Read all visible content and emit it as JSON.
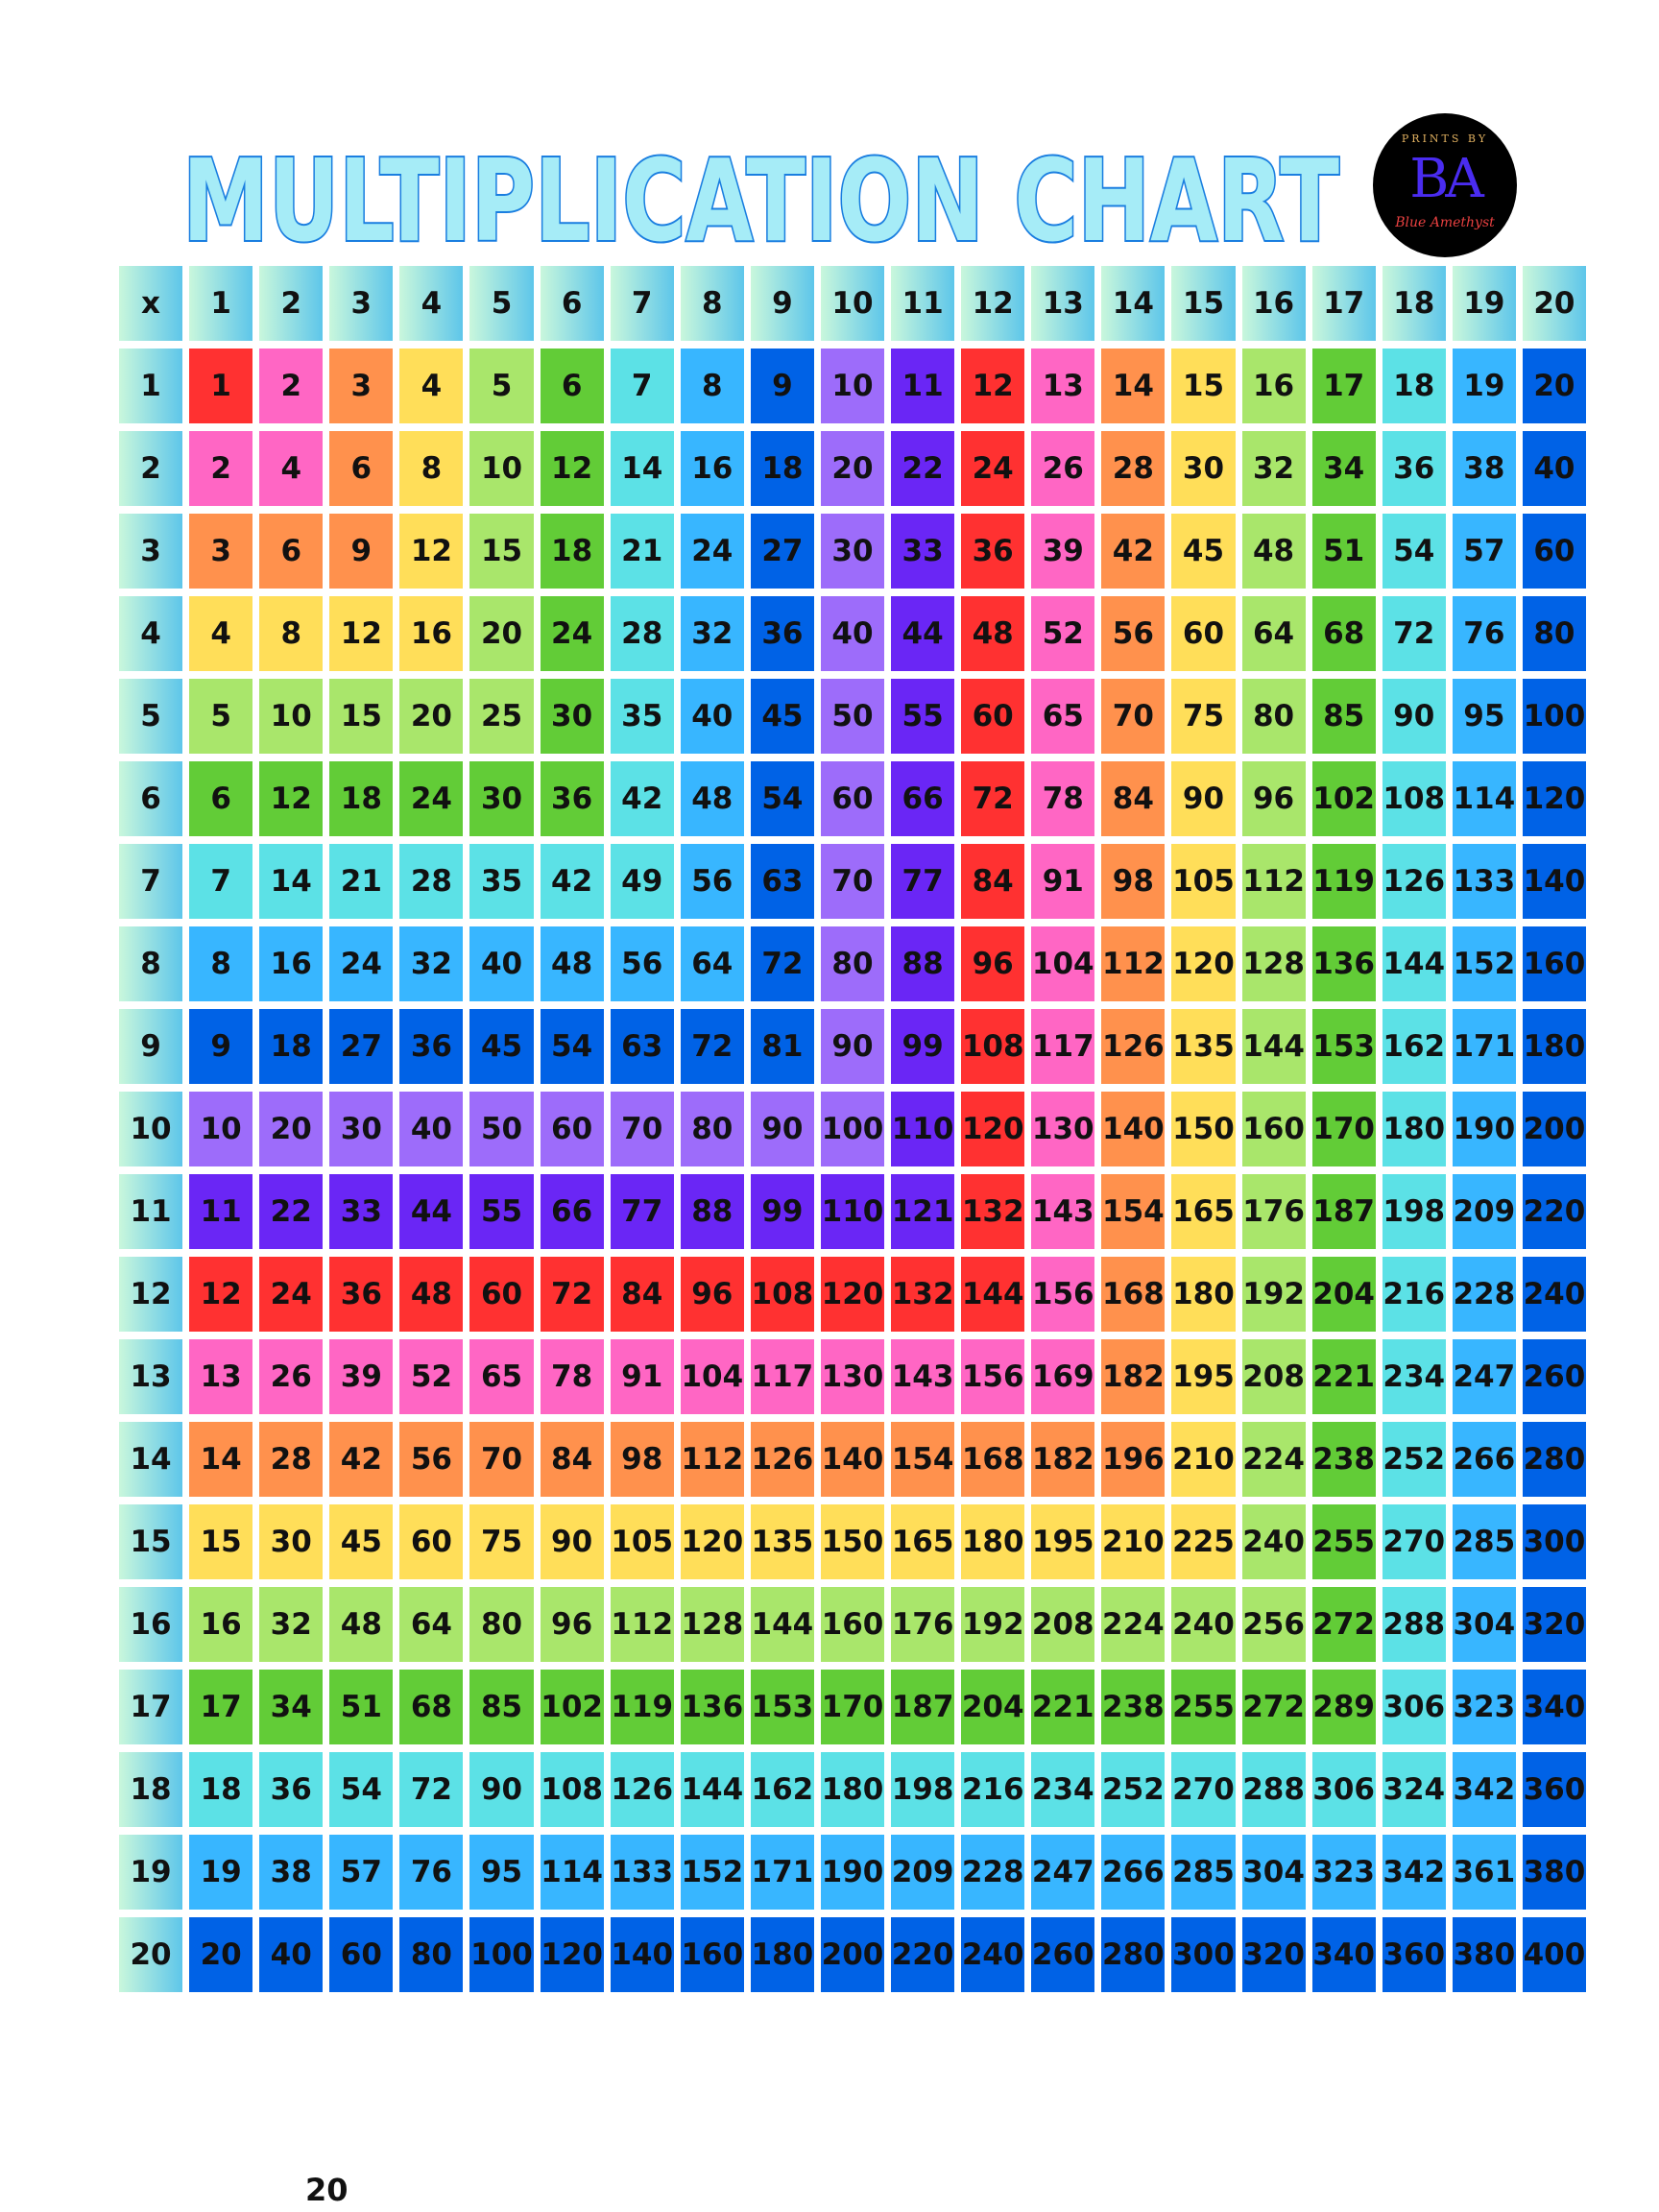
{
  "title": "MULTIPLICATION CHART",
  "logo": {
    "top_text": "PRINTS BY",
    "monogram": "BA",
    "script_text": "Blue Amethyst"
  },
  "table": {
    "corner": "x",
    "column_headers": [
      1,
      2,
      3,
      4,
      5,
      6,
      7,
      8,
      9,
      10,
      11,
      12,
      13,
      14,
      15,
      16,
      17,
      18,
      19,
      20
    ],
    "row_headers": [
      1,
      2,
      3,
      4,
      5,
      6,
      7,
      8,
      9,
      10,
      11,
      12,
      13,
      14,
      15,
      16,
      17,
      18,
      19,
      20
    ],
    "rows": [
      [
        1,
        2,
        3,
        4,
        5,
        6,
        7,
        8,
        9,
        10,
        11,
        12,
        13,
        14,
        15,
        16,
        17,
        18,
        19,
        20
      ],
      [
        2,
        4,
        6,
        8,
        10,
        12,
        14,
        16,
        18,
        20,
        22,
        24,
        26,
        28,
        30,
        32,
        34,
        36,
        38,
        40
      ],
      [
        3,
        6,
        9,
        12,
        15,
        18,
        21,
        24,
        27,
        30,
        33,
        36,
        39,
        42,
        45,
        48,
        51,
        54,
        57,
        60
      ],
      [
        4,
        8,
        12,
        16,
        20,
        24,
        28,
        32,
        36,
        40,
        44,
        48,
        52,
        56,
        60,
        64,
        68,
        72,
        76,
        80
      ],
      [
        5,
        10,
        15,
        20,
        25,
        30,
        35,
        40,
        45,
        50,
        55,
        60,
        65,
        70,
        75,
        80,
        85,
        90,
        95,
        100
      ],
      [
        6,
        12,
        18,
        24,
        30,
        36,
        42,
        48,
        54,
        60,
        66,
        72,
        78,
        84,
        90,
        96,
        102,
        108,
        114,
        120
      ],
      [
        7,
        14,
        21,
        28,
        35,
        42,
        49,
        56,
        63,
        70,
        77,
        84,
        91,
        98,
        105,
        112,
        119,
        126,
        133,
        140
      ],
      [
        8,
        16,
        24,
        32,
        40,
        48,
        56,
        64,
        72,
        80,
        88,
        96,
        104,
        112,
        120,
        128,
        136,
        144,
        152,
        160
      ],
      [
        9,
        18,
        27,
        36,
        45,
        54,
        63,
        72,
        81,
        90,
        99,
        108,
        117,
        126,
        135,
        144,
        153,
        162,
        171,
        180
      ],
      [
        10,
        20,
        30,
        40,
        50,
        60,
        70,
        80,
        90,
        100,
        110,
        120,
        130,
        140,
        150,
        160,
        170,
        180,
        190,
        200
      ],
      [
        11,
        22,
        33,
        44,
        55,
        66,
        77,
        88,
        99,
        110,
        121,
        132,
        143,
        154,
        165,
        176,
        187,
        198,
        209,
        220
      ],
      [
        12,
        24,
        36,
        48,
        60,
        72,
        84,
        96,
        108,
        120,
        132,
        144,
        156,
        168,
        180,
        192,
        204,
        216,
        228,
        240
      ],
      [
        13,
        26,
        39,
        52,
        65,
        78,
        91,
        104,
        117,
        130,
        143,
        156,
        169,
        182,
        195,
        208,
        221,
        234,
        247,
        260
      ],
      [
        14,
        28,
        42,
        56,
        70,
        84,
        98,
        112,
        126,
        140,
        154,
        168,
        182,
        196,
        210,
        224,
        238,
        252,
        266,
        280
      ],
      [
        15,
        30,
        45,
        60,
        75,
        90,
        105,
        120,
        135,
        150,
        165,
        180,
        195,
        210,
        225,
        240,
        255,
        270,
        285,
        300
      ],
      [
        16,
        32,
        48,
        64,
        80,
        96,
        112,
        128,
        144,
        160,
        176,
        192,
        208,
        224,
        240,
        256,
        272,
        288,
        304,
        320
      ],
      [
        17,
        34,
        51,
        68,
        85,
        102,
        119,
        136,
        153,
        170,
        187,
        204,
        221,
        238,
        255,
        272,
        289,
        306,
        323,
        340
      ],
      [
        18,
        36,
        54,
        72,
        90,
        108,
        126,
        144,
        162,
        180,
        198,
        216,
        234,
        252,
        270,
        288,
        306,
        324,
        342,
        360
      ],
      [
        19,
        38,
        57,
        76,
        95,
        114,
        133,
        152,
        171,
        190,
        209,
        228,
        247,
        266,
        285,
        304,
        323,
        342,
        361,
        380
      ],
      [
        20,
        40,
        60,
        80,
        100,
        120,
        140,
        160,
        180,
        200,
        220,
        240,
        260,
        280,
        300,
        320,
        340,
        360,
        380,
        400
      ]
    ]
  },
  "colors": {
    "palette": [
      "#ff3131",
      "#ff66c4",
      "#ff914d",
      "#ffde59",
      "#a9e66b",
      "#62cc37",
      "#5ce1e6",
      "#38b6ff",
      "#0062e6",
      "#9d6cfa",
      "#6a26f5"
    ],
    "title_fill": "#a6ecf7",
    "title_stroke": "#1a7ee0"
  },
  "page_number": "20"
}
